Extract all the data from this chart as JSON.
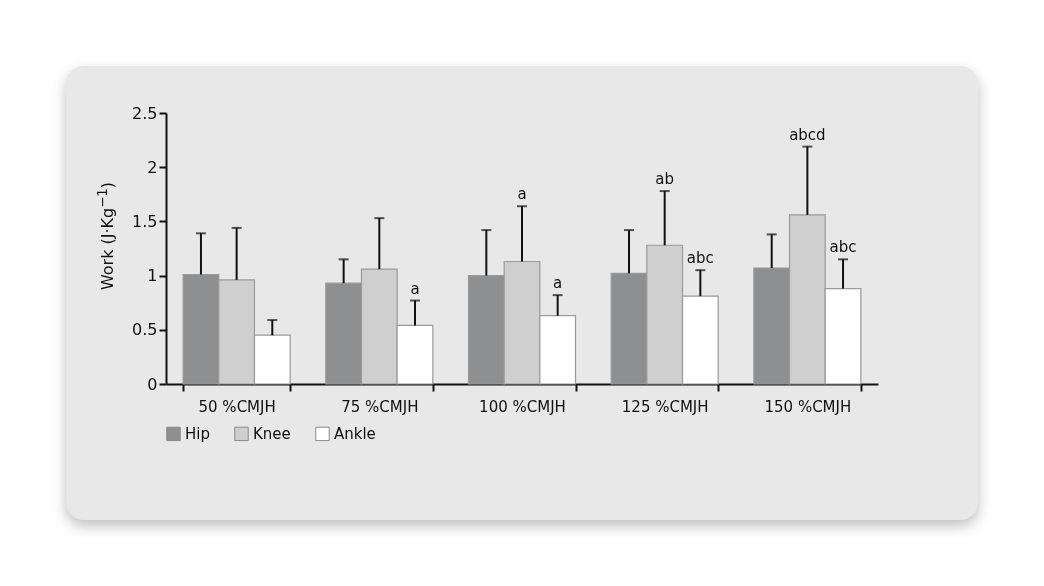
{
  "chart_data": {
    "type": "bar",
    "ylabel": "Work (J·Kg$^{−1}$)",
    "categories": [
      "50 %CMJH",
      "75 %CMJH",
      "100 %CMJH",
      "125 %CMJH",
      "150 %CMJH"
    ],
    "series": [
      {
        "name": "Hip",
        "color": "#8e8f91",
        "values": [
          1.01,
          0.93,
          1.0,
          1.02,
          1.07
        ],
        "errors": [
          [
            1.01,
            1.39
          ],
          [
            0.93,
            1.15
          ],
          [
            1.0,
            1.42
          ],
          [
            1.02,
            1.42
          ],
          [
            1.07,
            1.38
          ]
        ]
      },
      {
        "name": "Knee",
        "color": "#cfcfcf",
        "values": [
          0.96,
          1.06,
          1.13,
          1.28,
          1.56
        ],
        "errors": [
          [
            0.96,
            1.44
          ],
          [
            1.06,
            1.53
          ],
          [
            1.13,
            1.64
          ],
          [
            1.28,
            1.78
          ],
          [
            1.56,
            2.19
          ]
        ]
      },
      {
        "name": "Ankle",
        "color": "#ffffff",
        "values": [
          0.45,
          0.54,
          0.63,
          0.81,
          0.88
        ],
        "errors": [
          [
            0.45,
            0.59
          ],
          [
            0.54,
            0.77
          ],
          [
            0.63,
            0.82
          ],
          [
            0.81,
            1.05
          ],
          [
            0.88,
            1.15
          ]
        ],
        "value_labels": [
          null,
          "a",
          "a",
          "abc",
          "abc"
        ]
      }
    ],
    "annotations": [
      {
        "text": "a",
        "x": "100 %CMJH",
        "y": 1.64
      },
      {
        "text": "ab",
        "x": "125 %CMJH",
        "y": 1.78
      },
      {
        "text": "abcd",
        "x": "150 %CMJH",
        "y": 2.19
      }
    ],
    "ylim": [
      0,
      2.5
    ],
    "yticks": [
      {
        "value": 0,
        "label": "0"
      },
      0.5,
      {
        "value": 1,
        "label": "1"
      },
      1.5,
      {
        "value": 2,
        "label": "2"
      },
      2.5
    ],
    "grid": false,
    "legend": "bottom"
  }
}
